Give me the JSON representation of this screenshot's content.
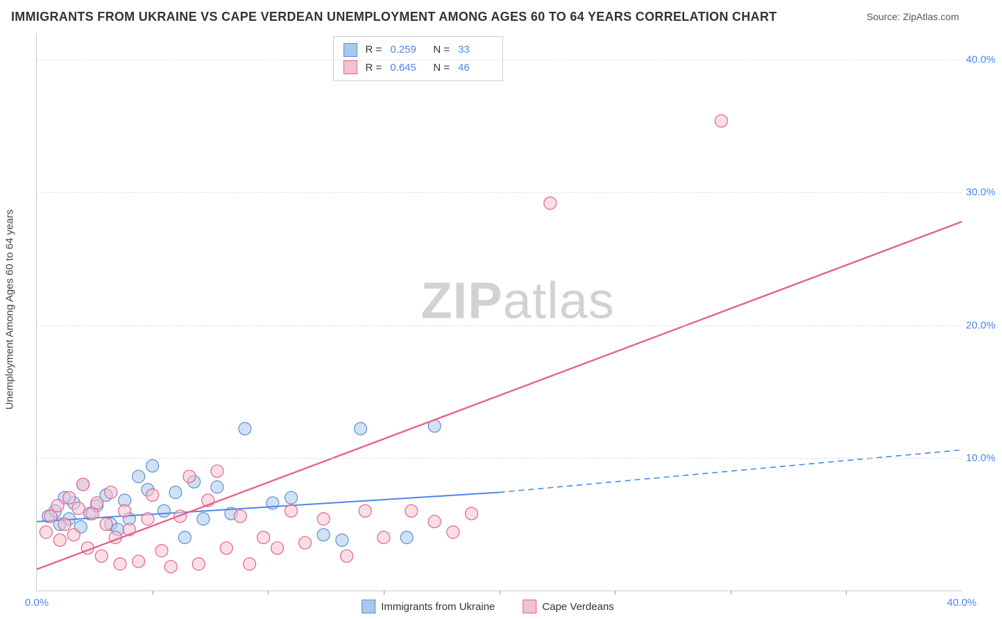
{
  "title": "IMMIGRANTS FROM UKRAINE VS CAPE VERDEAN UNEMPLOYMENT AMONG AGES 60 TO 64 YEARS CORRELATION CHART",
  "source": "Source: ZipAtlas.com",
  "ylabel": "Unemployment Among Ages 60 to 64 years",
  "watermark_a": "ZIP",
  "watermark_b": "atlas",
  "chart": {
    "type": "scatter",
    "xlim": [
      0,
      40
    ],
    "ylim": [
      0,
      42
    ],
    "xticks": [
      0,
      40
    ],
    "xtick_labels": [
      "0.0%",
      "40.0%"
    ],
    "yticks": [
      10,
      20,
      30,
      40
    ],
    "ytick_labels": [
      "10.0%",
      "20.0%",
      "30.0%",
      "40.0%"
    ],
    "minor_x_ticks": [
      5,
      10,
      15,
      20,
      25,
      30,
      35
    ],
    "grid_color": "#e0e0e0",
    "background_color": "#ffffff",
    "marker_radius": 9,
    "marker_stroke_width": 1.2,
    "series": [
      {
        "name": "Immigrants from Ukraine",
        "fill": "#a9c8ed",
        "stroke": "#5b8fd6",
        "fill_opacity": 0.55,
        "r_value": "0.259",
        "n_value": "33",
        "trend": {
          "x1": 0,
          "y1": 5.2,
          "x2": 20,
          "y2": 7.4,
          "x3": 40,
          "y3": 10.6,
          "solid_until": 20,
          "color": "#4a86e8",
          "width": 2
        },
        "points": [
          [
            0.5,
            5.6
          ],
          [
            0.8,
            6.0
          ],
          [
            1.0,
            5.0
          ],
          [
            1.2,
            7.0
          ],
          [
            1.4,
            5.4
          ],
          [
            1.6,
            6.6
          ],
          [
            1.9,
            4.8
          ],
          [
            2.0,
            8.0
          ],
          [
            2.3,
            5.8
          ],
          [
            2.6,
            6.4
          ],
          [
            3.0,
            7.2
          ],
          [
            3.2,
            5.0
          ],
          [
            3.5,
            4.6
          ],
          [
            3.8,
            6.8
          ],
          [
            4.0,
            5.4
          ],
          [
            4.4,
            8.6
          ],
          [
            4.8,
            7.6
          ],
          [
            5.0,
            9.4
          ],
          [
            5.5,
            6.0
          ],
          [
            6.0,
            7.4
          ],
          [
            6.4,
            4.0
          ],
          [
            6.8,
            8.2
          ],
          [
            7.2,
            5.4
          ],
          [
            7.8,
            7.8
          ],
          [
            8.4,
            5.8
          ],
          [
            9.0,
            12.2
          ],
          [
            10.2,
            6.6
          ],
          [
            11.0,
            7.0
          ],
          [
            12.4,
            4.2
          ],
          [
            13.2,
            3.8
          ],
          [
            14.0,
            12.2
          ],
          [
            16.0,
            4.0
          ],
          [
            17.2,
            12.4
          ]
        ]
      },
      {
        "name": "Cape Verdeans",
        "fill": "#f4c2cf",
        "stroke": "#e6628a",
        "fill_opacity": 0.55,
        "r_value": "0.645",
        "n_value": "46",
        "trend": {
          "x1": 0,
          "y1": 1.6,
          "x2": 40,
          "y2": 27.8,
          "color": "#e6628a",
          "width": 2.4
        },
        "points": [
          [
            0.4,
            4.4
          ],
          [
            0.6,
            5.6
          ],
          [
            0.9,
            6.4
          ],
          [
            1.0,
            3.8
          ],
          [
            1.2,
            5.0
          ],
          [
            1.4,
            7.0
          ],
          [
            1.6,
            4.2
          ],
          [
            1.8,
            6.2
          ],
          [
            2.0,
            8.0
          ],
          [
            2.2,
            3.2
          ],
          [
            2.4,
            5.8
          ],
          [
            2.6,
            6.6
          ],
          [
            2.8,
            2.6
          ],
          [
            3.0,
            5.0
          ],
          [
            3.2,
            7.4
          ],
          [
            3.4,
            4.0
          ],
          [
            3.6,
            2.0
          ],
          [
            3.8,
            6.0
          ],
          [
            4.0,
            4.6
          ],
          [
            4.4,
            2.2
          ],
          [
            4.8,
            5.4
          ],
          [
            5.0,
            7.2
          ],
          [
            5.4,
            3.0
          ],
          [
            5.8,
            1.8
          ],
          [
            6.2,
            5.6
          ],
          [
            6.6,
            8.6
          ],
          [
            7.0,
            2.0
          ],
          [
            7.4,
            6.8
          ],
          [
            7.8,
            9.0
          ],
          [
            8.2,
            3.2
          ],
          [
            8.8,
            5.6
          ],
          [
            9.2,
            2.0
          ],
          [
            9.8,
            4.0
          ],
          [
            10.4,
            3.2
          ],
          [
            11.0,
            6.0
          ],
          [
            11.6,
            3.6
          ],
          [
            12.4,
            5.4
          ],
          [
            13.4,
            2.6
          ],
          [
            14.2,
            6.0
          ],
          [
            15.0,
            4.0
          ],
          [
            16.2,
            6.0
          ],
          [
            17.2,
            5.2
          ],
          [
            18.0,
            4.4
          ],
          [
            22.2,
            29.2
          ],
          [
            29.6,
            35.4
          ],
          [
            18.8,
            5.8
          ]
        ]
      }
    ]
  },
  "legend_stats": {
    "r_label": "R =",
    "n_label": "N ="
  },
  "colors": {
    "tick_text": "#4a86e8",
    "axis": "#cccccc",
    "title": "#333333"
  }
}
